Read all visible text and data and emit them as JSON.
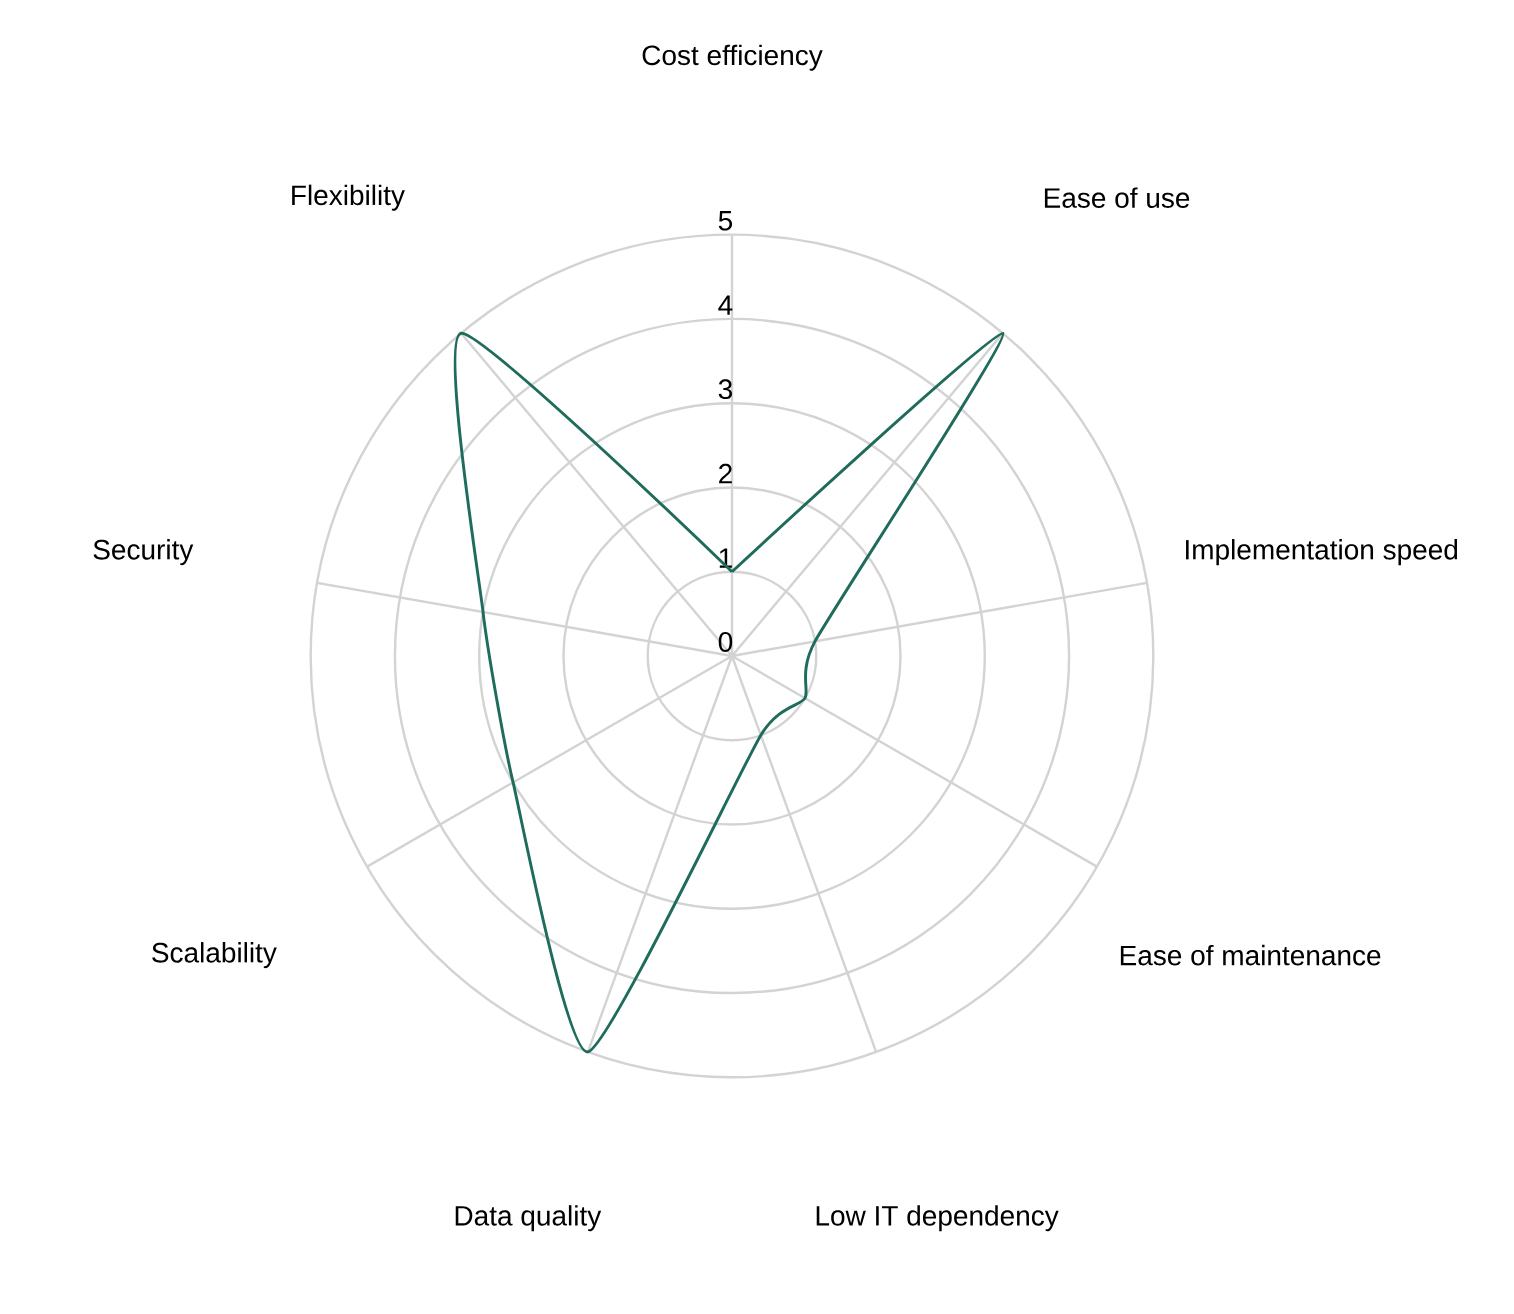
{
  "chart_data": {
    "type": "radar",
    "categories": [
      "Cost efficiency",
      "Ease of use",
      "Implementation speed",
      "Ease of maintenance",
      "Low IT dependency",
      "Data quality",
      "Scalability",
      "Security",
      "Flexibility"
    ],
    "series": [
      {
        "color": "#1f6b5c",
        "values": [
          1,
          5,
          1,
          1,
          1,
          5,
          3,
          3,
          5
        ]
      }
    ],
    "ylim": [
      0,
      5
    ],
    "yticks": [
      0,
      1,
      2,
      3,
      4,
      5
    ],
    "grid": true,
    "line_style": "solid",
    "marker": "none"
  }
}
